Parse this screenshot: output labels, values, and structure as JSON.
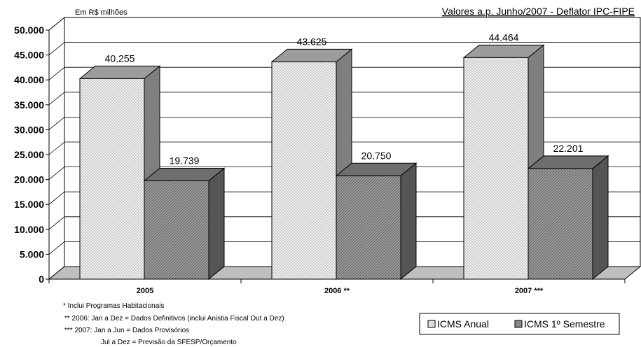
{
  "chart_data": {
    "type": "bar",
    "unit_label": "Em R$ milhões",
    "deflator_note": "Valores a.p. Junho/2007 - Deflator IPC-FIPE",
    "categories": [
      "2005",
      "2006 **",
      "2007 ***"
    ],
    "series": [
      {
        "name": "ICMS Anual",
        "values": [
          40255,
          43625,
          44464
        ],
        "labels": [
          "40.255",
          "43.625",
          "44.464"
        ]
      },
      {
        "name": "ICMS 1º Semestre",
        "values": [
          19739,
          20750,
          22201
        ],
        "labels": [
          "19.739",
          "20.750",
          "22.201"
        ]
      }
    ],
    "ylim": [
      0,
      50000
    ],
    "yticks": [
      0,
      5000,
      10000,
      15000,
      20000,
      25000,
      30000,
      35000,
      40000,
      45000,
      50000
    ],
    "ytick_labels": [
      "0",
      "5.000",
      "10.000",
      "15.000",
      "20.000",
      "25.000",
      "30.000",
      "35.000",
      "40.000",
      "45.000",
      "50.000"
    ],
    "grid": true,
    "legend_position": "bottom-right",
    "style": "3d-bars",
    "colors": {
      "series1_face": "#f2f2f2",
      "series1_side": "#7f7f7f",
      "series2_face": "#8c8c8c",
      "series2_side": "#555555",
      "floor": "#bfbfbf"
    }
  },
  "footnotes": [
    "* Inclui Programas Habitacionais",
    "** 2006:  Jan a  Dez  =  Dados Definitivos (inclui Anistia Fiscal Out a Dez)",
    "*** 2007: Jan a Jun = Dados Provisórios",
    "Jul a Dez  =  Previsão da SFESP/Orçamento"
  ]
}
